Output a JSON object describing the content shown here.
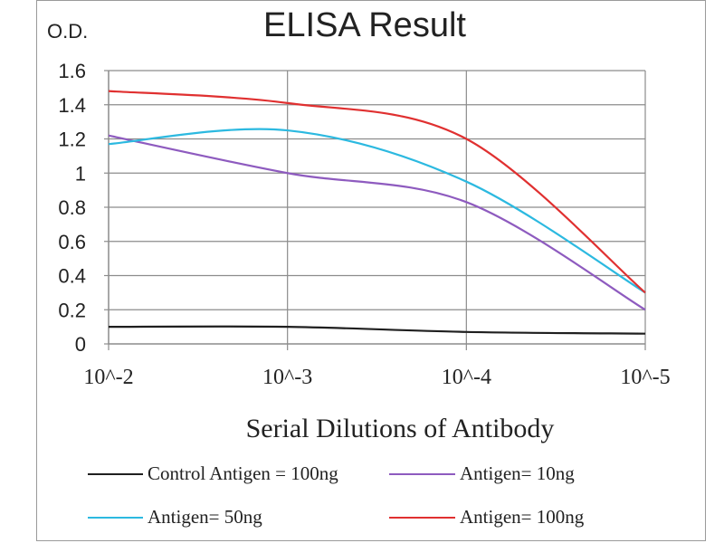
{
  "chart_data": {
    "type": "line",
    "title": "ELISA Result",
    "ylabel": "O.D.",
    "xlabel": "Serial Dilutions  of Antibody",
    "categories": [
      "10^-2",
      "10^-3",
      "10^-4",
      "10^-5"
    ],
    "y_ticks": [
      "0",
      "0.2",
      "0.4",
      "0.6",
      "0.8",
      "1",
      "1.2",
      "1.4",
      "1.6"
    ],
    "ylim": [
      0,
      1.6
    ],
    "grid": true,
    "legend_position": "bottom",
    "series": [
      {
        "name": "Control Antigen = 100ng",
        "color": "#1f1f1f",
        "values": [
          0.1,
          0.1,
          0.07,
          0.06
        ]
      },
      {
        "name": "Antigen= 10ng",
        "color": "#8e5bbf",
        "values": [
          1.22,
          1.0,
          0.83,
          0.2
        ]
      },
      {
        "name": "Antigen= 50ng",
        "color": "#2cb9e0",
        "values": [
          1.17,
          1.25,
          0.95,
          0.3
        ]
      },
      {
        "name": "Antigen= 100ng",
        "color": "#e03030",
        "values": [
          1.48,
          1.41,
          1.2,
          0.3
        ]
      }
    ]
  }
}
